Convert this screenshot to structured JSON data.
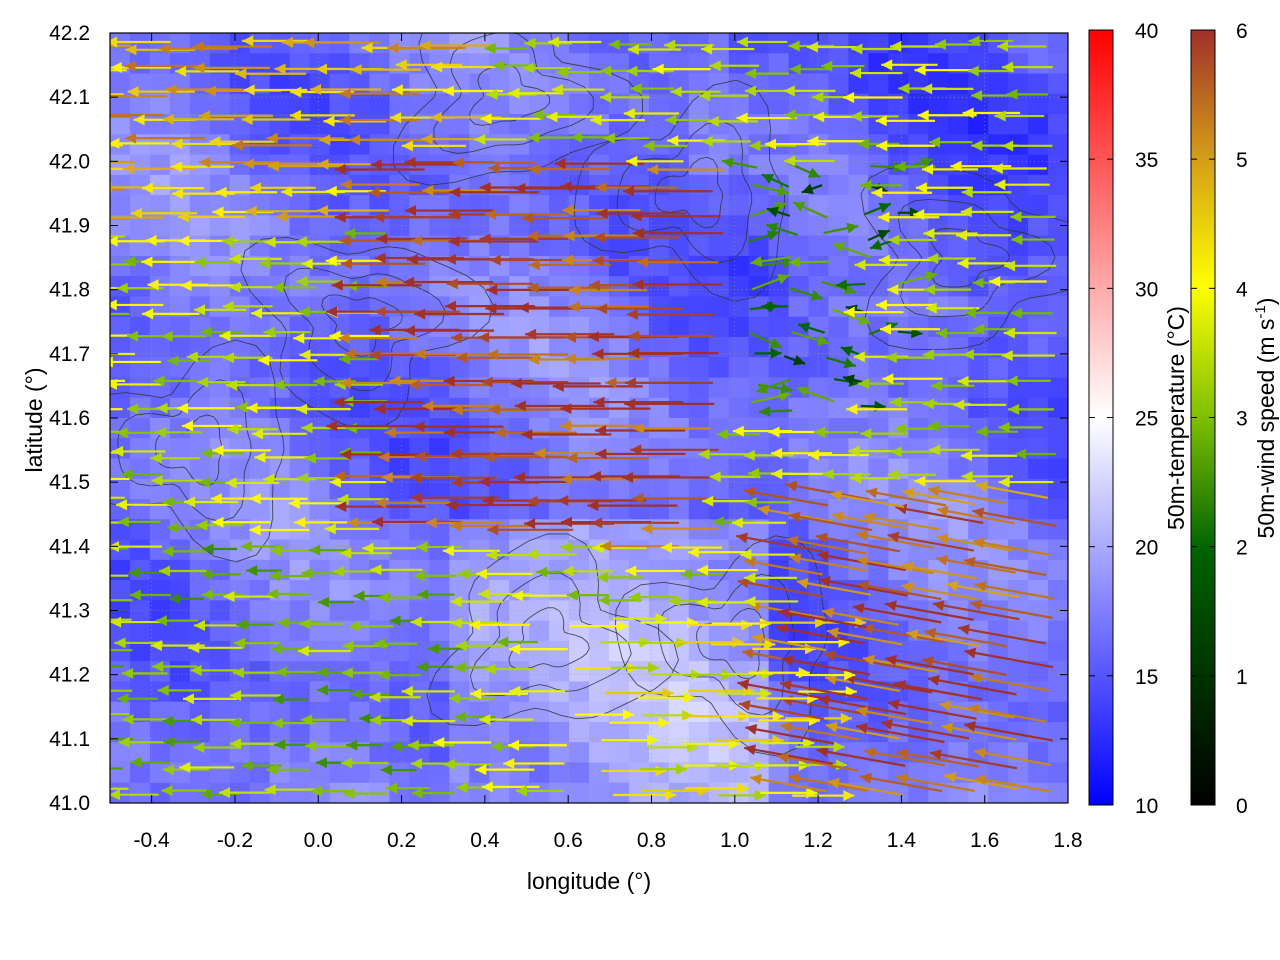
{
  "chart_data": {
    "type": "heatmap",
    "title": "",
    "xlabel": "longitude (°)",
    "ylabel": "latitude (°)",
    "xlim": [
      -0.5,
      1.8
    ],
    "ylim": [
      41.0,
      42.2
    ],
    "grid": true,
    "xticks": [
      -0.4,
      -0.2,
      0.0,
      0.2,
      0.4,
      0.6,
      0.8,
      1.0,
      1.2,
      1.4,
      1.6,
      1.8
    ],
    "xtick_labels": [
      "-0.4",
      "-0.2",
      "0.0",
      "0.2",
      "0.4",
      "0.6",
      "0.8",
      "1.0",
      "1.2",
      "1.4",
      "1.6",
      "1.8"
    ],
    "yticks": [
      41.0,
      41.1,
      41.2,
      41.3,
      41.4,
      41.5,
      41.6,
      41.7,
      41.8,
      41.9,
      42.0,
      42.1,
      42.2
    ],
    "ytick_labels": [
      "41.0",
      "41.1",
      "41.2",
      "41.3",
      "41.4",
      "41.5",
      "41.6",
      "41.7",
      "41.8",
      "41.9",
      "42.0",
      "42.1",
      "42.2"
    ],
    "temperature_colorbar": {
      "label": "50m-temperature (°C)",
      "range": [
        10,
        40
      ],
      "ticks": [
        10,
        15,
        20,
        25,
        30,
        35,
        40
      ],
      "tick_labels": [
        "10",
        "15",
        "20",
        "25",
        "30",
        "35",
        "40"
      ],
      "colors": [
        "#0000ff",
        "#ffffff",
        "#ff0000"
      ]
    },
    "wind_colorbar": {
      "label_prefix": "50m-wind speed (m s",
      "label_exp": "-1",
      "label_suffix": ")",
      "range": [
        0,
        6
      ],
      "ticks": [
        0,
        1,
        2,
        3,
        4,
        5,
        6
      ],
      "tick_labels": [
        "0",
        "1",
        "2",
        "3",
        "4",
        "5",
        "6"
      ],
      "colors": [
        "#000000",
        "#006400",
        "#7fbf00",
        "#ffff00",
        "#d4a017",
        "#a0302a"
      ]
    },
    "temperature_field_range_estimated": [
      13,
      22
    ],
    "wind_regions_estimated": [
      {
        "region": "central band lat 41.4–42.0, lon 0.2–1.0",
        "speed": 5.8,
        "direction": "westward"
      },
      {
        "region": "south-east lat 41.0–41.5, lon 1.2–1.8",
        "speed": 5.5,
        "direction": "west-north-westward"
      },
      {
        "region": "north-west lat 41.9–42.2, lon -0.5–0.5",
        "speed": 4.5,
        "direction": "westward"
      },
      {
        "region": "south-west lat 41.0–41.4, lon -0.5–0.4",
        "speed": 2.5,
        "direction": "westward"
      },
      {
        "region": "east lat 41.6–42.0, lon 1.0–1.4",
        "speed": 1.5,
        "direction": "variable"
      },
      {
        "region": "south-central lat 41.0–41.3, lon 0.6–1.2",
        "speed": 3.5,
        "direction": "eastward"
      }
    ]
  }
}
